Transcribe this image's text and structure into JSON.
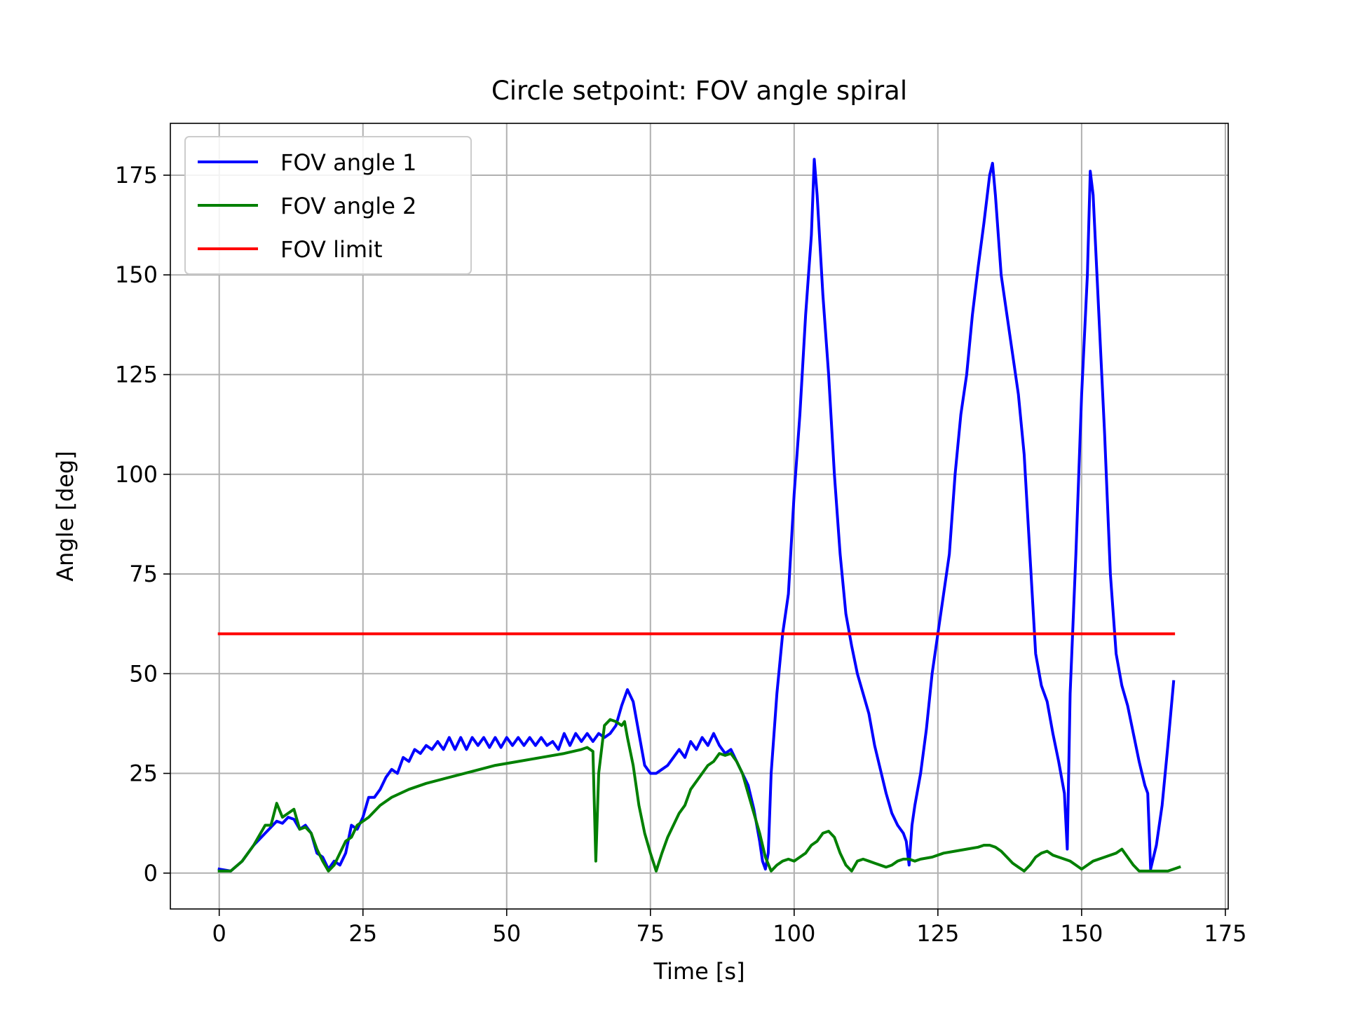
{
  "chart_data": {
    "type": "line",
    "title": "Circle setpoint: FOV angle spiral",
    "xlabel": "Time [s]",
    "ylabel": "Angle [deg]",
    "xlim": [
      -8.5,
      175.5
    ],
    "ylim": [
      -9,
      188
    ],
    "xticks": [
      0,
      25,
      50,
      75,
      100,
      125,
      150,
      175
    ],
    "yticks": [
      0,
      25,
      50,
      75,
      100,
      125,
      150,
      175
    ],
    "grid": true,
    "legend_position": "top-left",
    "series": [
      {
        "name": "FOV angle 1",
        "color": "#0000ff",
        "points": [
          [
            0,
            1
          ],
          [
            2,
            0.5
          ],
          [
            4,
            3
          ],
          [
            6,
            7
          ],
          [
            8,
            10
          ],
          [
            10,
            13
          ],
          [
            11,
            12.5
          ],
          [
            12,
            14
          ],
          [
            13,
            13.5
          ],
          [
            14,
            11
          ],
          [
            15,
            12
          ],
          [
            16,
            10
          ],
          [
            17,
            5
          ],
          [
            18,
            4
          ],
          [
            19,
            1
          ],
          [
            20,
            3
          ],
          [
            21,
            2
          ],
          [
            22,
            5
          ],
          [
            23,
            12
          ],
          [
            24,
            11
          ],
          [
            25,
            14
          ],
          [
            26,
            19
          ],
          [
            27,
            19
          ],
          [
            28,
            21
          ],
          [
            29,
            24
          ],
          [
            30,
            26
          ],
          [
            31,
            25
          ],
          [
            32,
            29
          ],
          [
            33,
            28
          ],
          [
            34,
            31
          ],
          [
            35,
            30
          ],
          [
            36,
            32
          ],
          [
            37,
            31
          ],
          [
            38,
            33
          ],
          [
            39,
            31
          ],
          [
            40,
            34
          ],
          [
            41,
            31
          ],
          [
            42,
            34
          ],
          [
            43,
            31
          ],
          [
            44,
            34
          ],
          [
            45,
            32
          ],
          [
            46,
            34
          ],
          [
            47,
            31.5
          ],
          [
            48,
            34
          ],
          [
            49,
            31.5
          ],
          [
            50,
            34
          ],
          [
            51,
            32
          ],
          [
            52,
            34
          ],
          [
            53,
            32
          ],
          [
            54,
            34
          ],
          [
            55,
            32
          ],
          [
            56,
            34
          ],
          [
            57,
            32
          ],
          [
            58,
            33
          ],
          [
            59,
            31
          ],
          [
            60,
            35
          ],
          [
            61,
            32
          ],
          [
            62,
            35
          ],
          [
            63,
            33
          ],
          [
            64,
            35
          ],
          [
            65,
            33
          ],
          [
            66,
            35
          ],
          [
            67,
            34
          ],
          [
            68,
            35
          ],
          [
            69,
            37
          ],
          [
            70,
            42
          ],
          [
            71,
            46
          ],
          [
            72,
            43
          ],
          [
            73,
            35
          ],
          [
            74,
            27
          ],
          [
            75,
            25
          ],
          [
            76,
            25
          ],
          [
            77,
            26
          ],
          [
            78,
            27
          ],
          [
            79,
            29
          ],
          [
            80,
            31
          ],
          [
            81,
            29
          ],
          [
            82,
            33
          ],
          [
            83,
            31
          ],
          [
            84,
            34
          ],
          [
            85,
            32
          ],
          [
            86,
            35
          ],
          [
            87,
            32
          ],
          [
            88,
            30
          ],
          [
            89,
            31
          ],
          [
            90,
            28
          ],
          [
            91,
            25
          ],
          [
            92,
            22
          ],
          [
            93,
            16
          ],
          [
            94,
            8
          ],
          [
            94.5,
            3
          ],
          [
            95,
            1
          ],
          [
            95.5,
            5
          ],
          [
            96,
            25
          ],
          [
            97,
            45
          ],
          [
            98,
            60
          ],
          [
            99,
            70
          ],
          [
            100,
            95
          ],
          [
            101,
            115
          ],
          [
            102,
            140
          ],
          [
            103,
            160
          ],
          [
            103.5,
            179
          ],
          [
            104,
            170
          ],
          [
            105,
            145
          ],
          [
            106,
            125
          ],
          [
            107,
            100
          ],
          [
            108,
            80
          ],
          [
            109,
            65
          ],
          [
            110,
            57
          ],
          [
            111,
            50
          ],
          [
            112,
            45
          ],
          [
            113,
            40
          ],
          [
            114,
            32
          ],
          [
            115,
            26
          ],
          [
            116,
            20
          ],
          [
            117,
            15
          ],
          [
            118,
            12
          ],
          [
            119,
            10
          ],
          [
            119.5,
            8
          ],
          [
            120,
            2
          ],
          [
            120.5,
            12
          ],
          [
            121,
            17
          ],
          [
            122,
            25
          ],
          [
            123,
            36
          ],
          [
            124,
            50
          ],
          [
            125,
            60
          ],
          [
            126,
            70
          ],
          [
            127,
            80
          ],
          [
            128,
            100
          ],
          [
            129,
            115
          ],
          [
            130,
            125
          ],
          [
            131,
            140
          ],
          [
            132,
            152
          ],
          [
            133,
            163
          ],
          [
            134,
            175
          ],
          [
            134.5,
            178
          ],
          [
            135,
            170
          ],
          [
            136,
            150
          ],
          [
            137,
            140
          ],
          [
            138,
            130
          ],
          [
            139,
            120
          ],
          [
            140,
            105
          ],
          [
            141,
            80
          ],
          [
            142,
            55
          ],
          [
            143,
            47
          ],
          [
            144,
            43
          ],
          [
            145,
            35
          ],
          [
            146,
            28
          ],
          [
            147,
            20
          ],
          [
            147.5,
            6
          ],
          [
            148,
            45
          ],
          [
            149,
            80
          ],
          [
            150,
            120
          ],
          [
            151,
            150
          ],
          [
            151.5,
            176
          ],
          [
            152,
            170
          ],
          [
            153,
            140
          ],
          [
            154,
            110
          ],
          [
            155,
            75
          ],
          [
            156,
            55
          ],
          [
            157,
            47
          ],
          [
            158,
            42
          ],
          [
            159,
            35
          ],
          [
            160,
            28
          ],
          [
            161,
            22
          ],
          [
            161.5,
            20
          ],
          [
            162,
            1
          ],
          [
            163,
            7
          ],
          [
            164,
            17
          ],
          [
            165,
            32
          ],
          [
            166,
            48
          ]
        ]
      },
      {
        "name": "FOV angle 2",
        "color": "#008000",
        "points": [
          [
            0,
            0.5
          ],
          [
            2,
            0.5
          ],
          [
            4,
            3
          ],
          [
            6,
            7
          ],
          [
            8,
            12
          ],
          [
            9,
            12
          ],
          [
            10,
            17.5
          ],
          [
            11,
            14
          ],
          [
            12,
            15
          ],
          [
            13,
            16
          ],
          [
            14,
            11
          ],
          [
            15,
            11.5
          ],
          [
            16,
            10
          ],
          [
            17,
            6
          ],
          [
            18,
            3
          ],
          [
            19,
            0.5
          ],
          [
            20,
            2
          ],
          [
            21,
            5
          ],
          [
            22,
            8
          ],
          [
            23,
            9
          ],
          [
            24,
            12
          ],
          [
            26,
            14
          ],
          [
            28,
            17
          ],
          [
            30,
            19
          ],
          [
            33,
            21
          ],
          [
            36,
            22.5
          ],
          [
            40,
            24
          ],
          [
            44,
            25.5
          ],
          [
            48,
            27
          ],
          [
            52,
            28
          ],
          [
            56,
            29
          ],
          [
            60,
            30
          ],
          [
            63,
            31
          ],
          [
            64,
            31.5
          ],
          [
            65,
            30.5
          ],
          [
            65.5,
            3
          ],
          [
            66,
            25
          ],
          [
            67,
            37
          ],
          [
            68,
            38.5
          ],
          [
            69,
            38
          ],
          [
            70,
            37
          ],
          [
            70.5,
            38
          ],
          [
            71,
            34
          ],
          [
            72,
            27
          ],
          [
            73,
            17
          ],
          [
            74,
            10
          ],
          [
            75,
            5
          ],
          [
            76,
            0.5
          ],
          [
            77,
            5
          ],
          [
            78,
            9
          ],
          [
            79,
            12
          ],
          [
            80,
            15
          ],
          [
            81,
            17
          ],
          [
            82,
            21
          ],
          [
            83,
            23
          ],
          [
            84,
            25
          ],
          [
            85,
            27
          ],
          [
            86,
            28
          ],
          [
            87,
            30
          ],
          [
            88,
            29.5
          ],
          [
            89,
            30
          ],
          [
            90,
            28
          ],
          [
            91,
            25
          ],
          [
            92,
            20
          ],
          [
            93,
            15
          ],
          [
            94,
            10
          ],
          [
            94.5,
            7
          ],
          [
            95,
            4
          ],
          [
            96,
            0.5
          ],
          [
            97,
            2
          ],
          [
            98,
            3
          ],
          [
            99,
            3.5
          ],
          [
            100,
            3
          ],
          [
            101,
            4
          ],
          [
            102,
            5
          ],
          [
            103,
            7
          ],
          [
            104,
            8
          ],
          [
            105,
            10
          ],
          [
            106,
            10.5
          ],
          [
            107,
            9
          ],
          [
            108,
            5
          ],
          [
            109,
            2
          ],
          [
            110,
            0.5
          ],
          [
            111,
            3
          ],
          [
            112,
            3.5
          ],
          [
            113,
            3
          ],
          [
            114,
            2.5
          ],
          [
            116,
            1.5
          ],
          [
            117,
            2
          ],
          [
            118,
            3
          ],
          [
            119,
            3.5
          ],
          [
            120,
            3.5
          ],
          [
            121,
            3
          ],
          [
            122,
            3.5
          ],
          [
            124,
            4
          ],
          [
            126,
            5
          ],
          [
            128,
            5.5
          ],
          [
            130,
            6
          ],
          [
            132,
            6.5
          ],
          [
            133,
            7
          ],
          [
            134,
            7
          ],
          [
            135,
            6.5
          ],
          [
            136,
            5.5
          ],
          [
            137,
            4
          ],
          [
            138,
            2.5
          ],
          [
            139,
            1.5
          ],
          [
            140,
            0.5
          ],
          [
            141,
            2
          ],
          [
            142,
            4
          ],
          [
            143,
            5
          ],
          [
            144,
            5.5
          ],
          [
            145,
            4.5
          ],
          [
            146,
            4
          ],
          [
            148,
            3
          ],
          [
            149,
            2
          ],
          [
            150,
            1
          ],
          [
            151,
            2
          ],
          [
            152,
            3
          ],
          [
            154,
            4
          ],
          [
            156,
            5
          ],
          [
            157,
            6
          ],
          [
            158,
            4
          ],
          [
            159,
            2
          ],
          [
            160,
            0.5
          ],
          [
            162,
            0.5
          ],
          [
            164,
            0.5
          ],
          [
            165,
            0.5
          ],
          [
            166,
            1
          ],
          [
            167,
            1.5
          ]
        ]
      },
      {
        "name": "FOV limit",
        "color": "#ff0000",
        "points": [
          [
            0,
            60
          ],
          [
            166,
            60
          ]
        ]
      }
    ]
  }
}
